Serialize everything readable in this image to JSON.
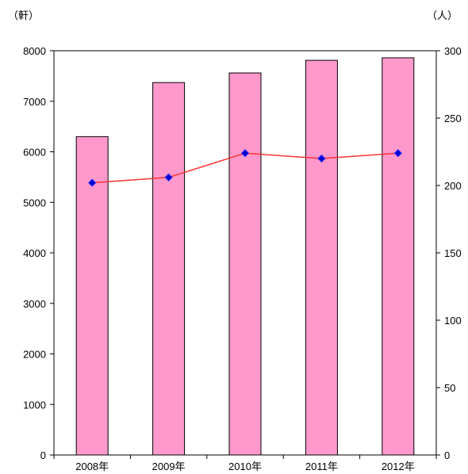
{
  "chart_data": {
    "type": "bar",
    "categories": [
      "2008年",
      "2009年",
      "2010年",
      "2011年",
      "2012年"
    ],
    "y_left_unit": "（軒）",
    "y_right_unit": "（人）",
    "ylim_left": [
      0,
      8000
    ],
    "ylim_right": [
      0,
      300
    ],
    "y_ticks_left": [
      "0",
      "1000",
      "2000",
      "3000",
      "4000",
      "5000",
      "6000",
      "7000",
      "8000"
    ],
    "y_ticks_right": [
      "0",
      "50",
      "100",
      "150",
      "200",
      "250",
      "300"
    ],
    "series": [
      {
        "type": "bar",
        "axis": "left",
        "values": [
          6300,
          7370,
          7560,
          7810,
          7860
        ],
        "color": "#ff99cc"
      },
      {
        "type": "line",
        "axis": "right",
        "values": [
          202,
          206,
          224,
          220,
          224
        ],
        "color": "#ff3333",
        "marker_color": "#0000cc"
      }
    ],
    "grid": false,
    "legend": "none"
  }
}
